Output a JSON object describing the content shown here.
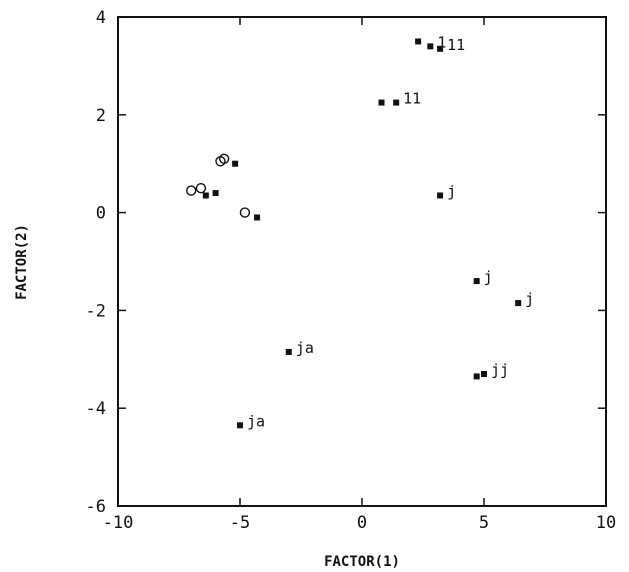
{
  "chart_data": {
    "type": "scatter",
    "title": "",
    "xlabel": "FACTOR(1)",
    "ylabel": "FACTOR(2)",
    "xlim": [
      -10,
      10
    ],
    "ylim": [
      -6,
      4
    ],
    "x_ticks": [
      -10,
      -5,
      0,
      5,
      10
    ],
    "y_ticks": [
      -6,
      -4,
      -2,
      0,
      2,
      4
    ],
    "x_tick_labels": [
      "-10",
      "-5",
      "0",
      "5",
      "10"
    ],
    "y_tick_labels": [
      "-6",
      "-4",
      "-2",
      "0",
      "2",
      "4"
    ],
    "grid": false,
    "series": [
      {
        "marker": "filled-square",
        "points": [
          {
            "x": 2.3,
            "y": 3.5,
            "label": ""
          },
          {
            "x": 2.8,
            "y": 3.4,
            "label": "1"
          },
          {
            "x": 3.2,
            "y": 3.35,
            "label": "11"
          },
          {
            "x": 0.8,
            "y": 2.25,
            "label": ""
          },
          {
            "x": 1.4,
            "y": 2.25,
            "label": "11"
          },
          {
            "x": -5.2,
            "y": 1.0,
            "label": ""
          },
          {
            "x": -6.0,
            "y": 0.4,
            "label": ""
          },
          {
            "x": -6.4,
            "y": 0.35,
            "label": ""
          },
          {
            "x": -4.3,
            "y": -0.1,
            "label": ""
          },
          {
            "x": 3.2,
            "y": 0.35,
            "label": "j"
          },
          {
            "x": 4.7,
            "y": -1.4,
            "label": "j"
          },
          {
            "x": 6.4,
            "y": -1.85,
            "label": "j"
          },
          {
            "x": 4.7,
            "y": -3.35,
            "label": ""
          },
          {
            "x": 5.0,
            "y": -3.3,
            "label": "jj"
          },
          {
            "x": -3.0,
            "y": -2.85,
            "label": "ja"
          },
          {
            "x": -5.0,
            "y": -4.35,
            "label": "ja"
          }
        ]
      },
      {
        "marker": "open-circle",
        "points": [
          {
            "x": -5.8,
            "y": 1.05
          },
          {
            "x": -5.65,
            "y": 1.1
          },
          {
            "x": -7.0,
            "y": 0.45
          },
          {
            "x": -6.6,
            "y": 0.5
          },
          {
            "x": -4.8,
            "y": 0.0
          }
        ]
      }
    ]
  }
}
